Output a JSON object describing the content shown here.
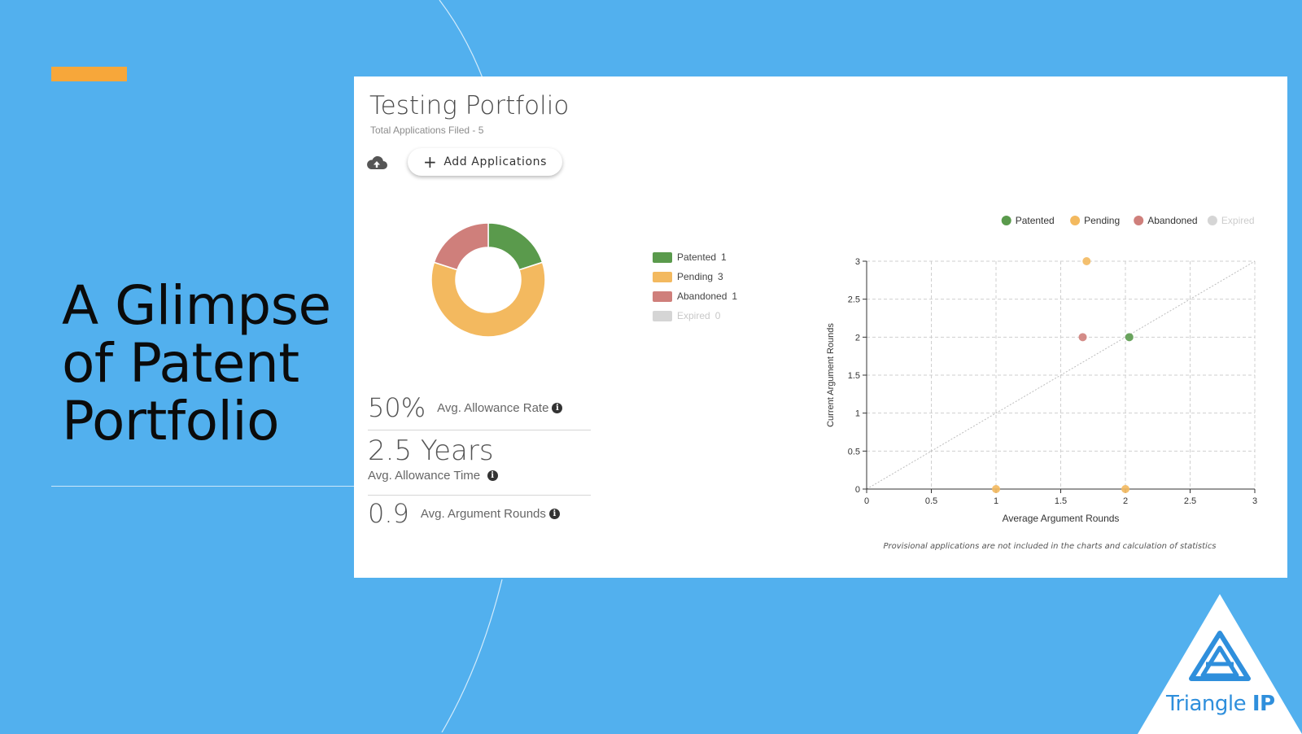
{
  "slide": {
    "title_lines": [
      "A Glimpse",
      "of Patent",
      "Portfolio"
    ],
    "background_color": "#52b0ee",
    "accent_color": "#f7a73a"
  },
  "portfolio": {
    "title": "Testing Portfolio",
    "subtitle": "Total Applications Filed - 5",
    "upload_icon": "cloud-upload-icon",
    "add_button_label": "Add Applications"
  },
  "status_legend": [
    {
      "label": "Patented",
      "count": "1",
      "color": "#5a9a4c"
    },
    {
      "label": "Pending",
      "count": "3",
      "color": "#f3b95f"
    },
    {
      "label": "Abandoned",
      "count": "1",
      "color": "#cf7f7b"
    },
    {
      "label": "Expired",
      "count": "0",
      "color": "#d5d5d5"
    }
  ],
  "stats": {
    "allowance_rate_value": "50%",
    "allowance_rate_label": "Avg. Allowance Rate",
    "allowance_time_value": "2.5 Years",
    "allowance_time_label": "Avg. Allowance Time",
    "argument_rounds_value": "0.9",
    "argument_rounds_label": "Avg. Argument Rounds",
    "info_icon": "info-circle-icon"
  },
  "chart_data": [
    {
      "type": "pie",
      "variant": "donut",
      "labels": [
        "Patented",
        "Pending",
        "Abandoned",
        "Expired"
      ],
      "values": [
        1,
        3,
        1,
        0
      ],
      "colors": [
        "#5a9a4c",
        "#f3b95f",
        "#cf7f7b",
        "#d5d5d5"
      ]
    },
    {
      "type": "scatter",
      "xlabel": "Average Argument Rounds",
      "ylabel": "Current Argument Rounds",
      "xlim": [
        0,
        3
      ],
      "ylim": [
        0,
        3
      ],
      "xticks": [
        "0",
        "0.5",
        "1",
        "1.5",
        "2",
        "2.5",
        "3"
      ],
      "yticks": [
        "0",
        "0.5",
        "1",
        "1.5",
        "2",
        "2.5",
        "3"
      ],
      "grid": true,
      "legend_position": "top-right",
      "reference_line": "y = x (dotted)",
      "series": [
        {
          "name": "Patented",
          "color": "#5a9a4c",
          "points": [
            [
              2.03,
              2
            ]
          ]
        },
        {
          "name": "Pending",
          "color": "#f3b95f",
          "points": [
            [
              1.7,
              3
            ],
            [
              1.0,
              0
            ],
            [
              2.0,
              0
            ]
          ]
        },
        {
          "name": "Abandoned",
          "color": "#cf7f7b",
          "points": [
            [
              1.67,
              2
            ]
          ]
        },
        {
          "name": "Expired",
          "color": "#d5d5d5",
          "points": []
        }
      ]
    }
  ],
  "footnote": "Provisional applications are not included in the charts and calculation of statistics",
  "brand": {
    "logo_icon": "triangle-ip-logo-icon",
    "name_regular": "Triangle ",
    "name_bold": "IP",
    "color": "#2f8fdc"
  }
}
